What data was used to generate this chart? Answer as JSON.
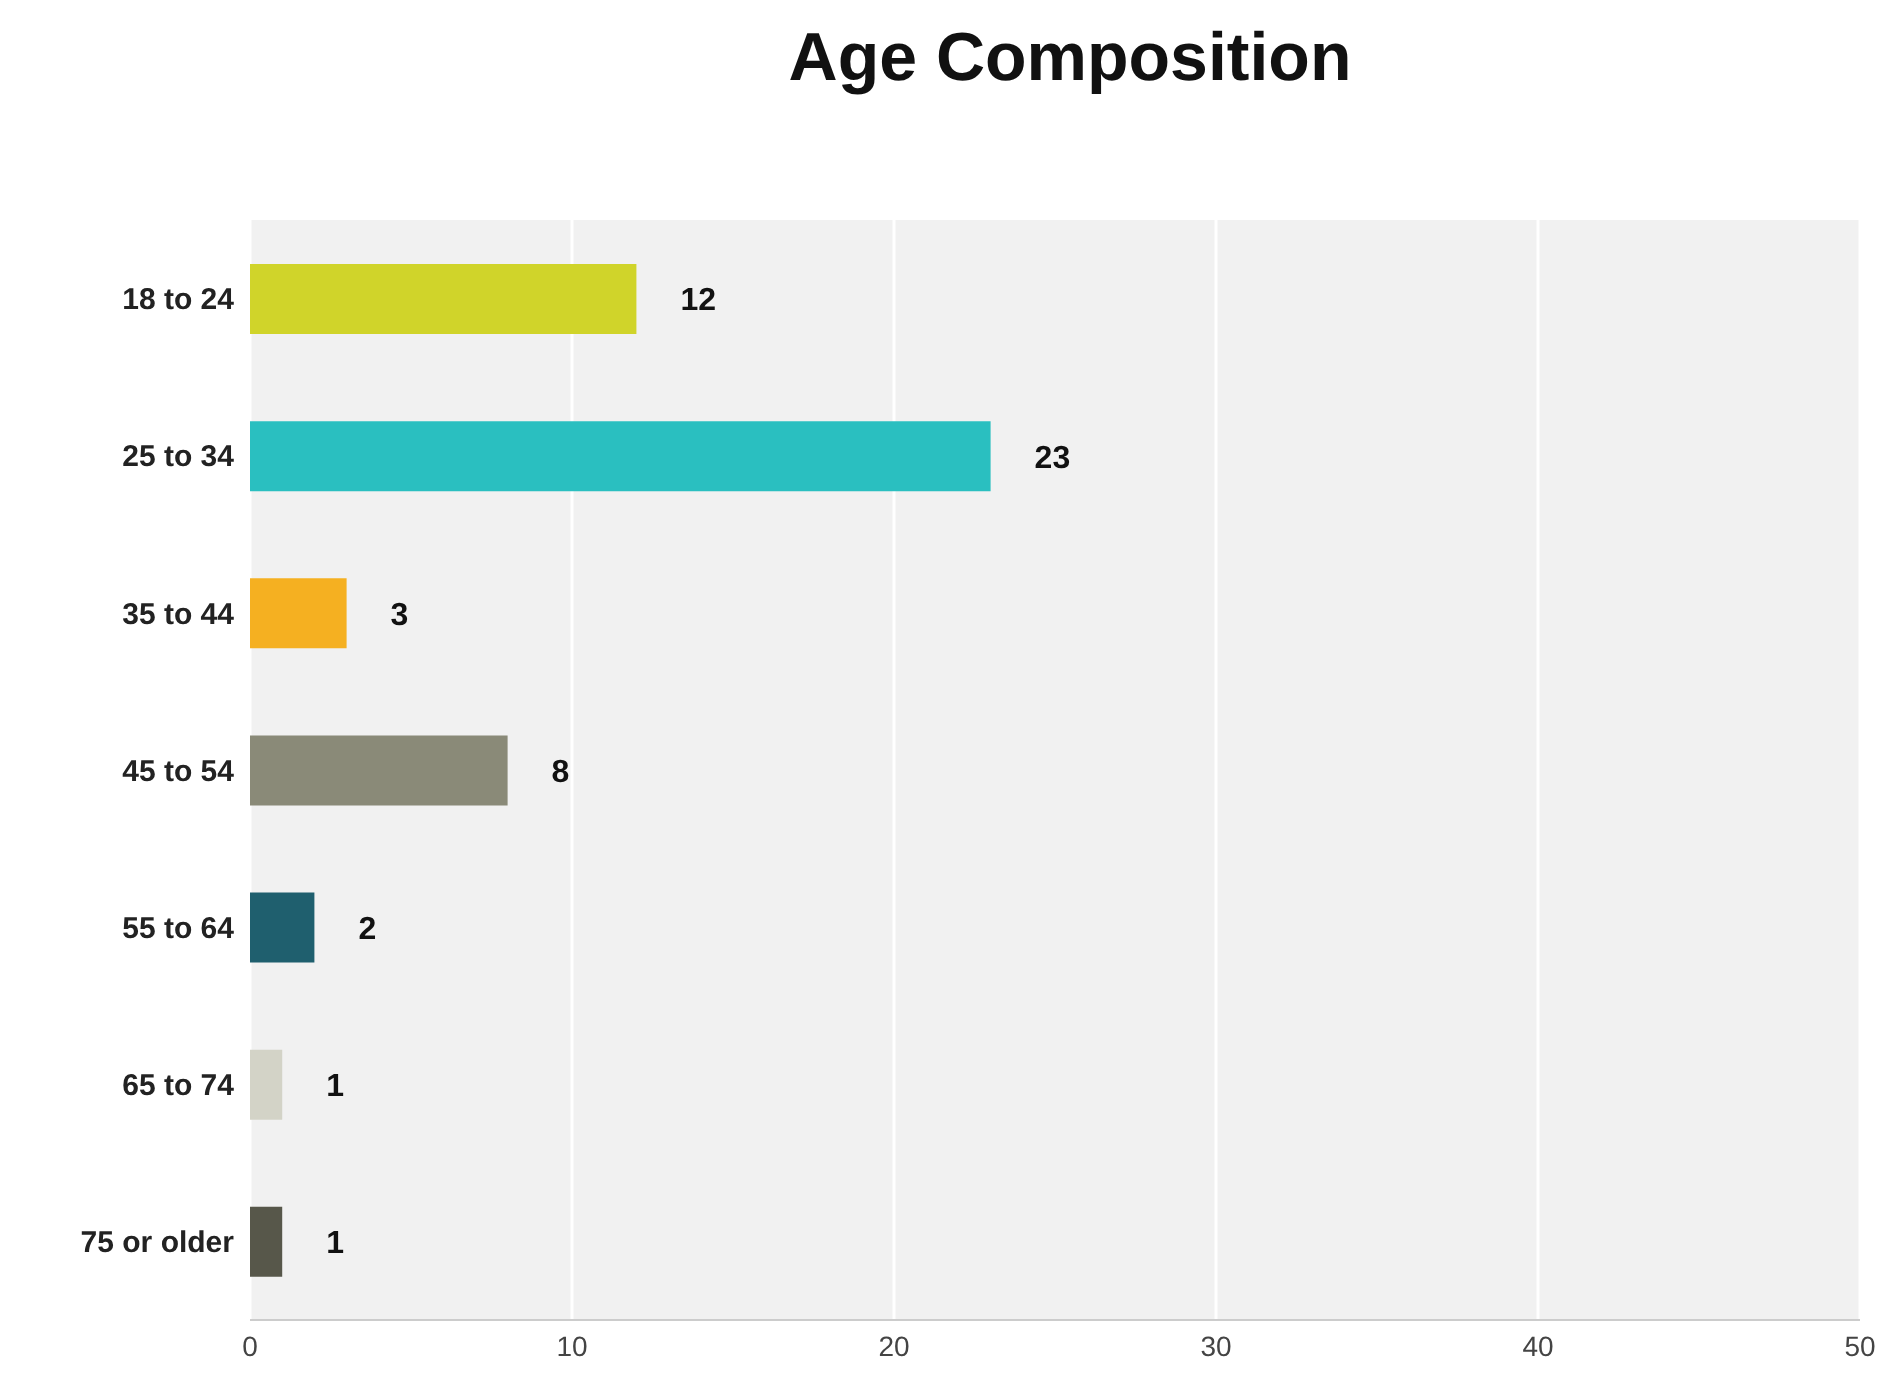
{
  "chart_data": {
    "type": "bar",
    "orientation": "horizontal",
    "title": "Age Composition",
    "categories": [
      "18 to 24",
      "25 to 34",
      "35 to 44",
      "45 to 54",
      "55 to 64",
      "65 to 74",
      "75 or older"
    ],
    "values": [
      12,
      23,
      3,
      8,
      2,
      1,
      1
    ],
    "colors": [
      "#d0d42a",
      "#2abfc0",
      "#f5b021",
      "#8a8a78",
      "#1f5f6e",
      "#d3d3c7",
      "#57574a"
    ],
    "xlim": [
      0,
      50
    ],
    "xticks": [
      0,
      10,
      20,
      30,
      40,
      50
    ],
    "grid": "x",
    "data_labels": true
  }
}
